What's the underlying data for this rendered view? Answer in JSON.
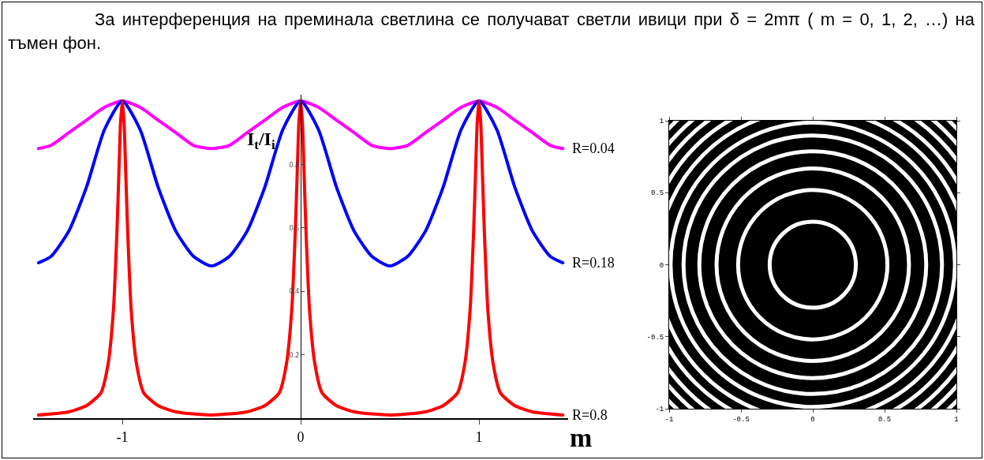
{
  "chart_data": [
    {
      "type": "line",
      "title": "За интерференция на преминала светлина се получават светли ивици при δ = 2mπ ( m = 0, 1, 2, …) на тъмен фон.",
      "xlabel": "m",
      "ylabel": "I$_{t}$/I$_{i}$",
      "xlim": [
        -1.5,
        1.5
      ],
      "ylim": [
        0,
        1.02
      ],
      "xticks": [
        -1,
        0,
        1
      ],
      "yticks": [
        0.2,
        0.4,
        0.6,
        0.8
      ],
      "grid": false,
      "legend": false,
      "series": [
        {
          "name": "R=0.04",
          "color": "#ff00ff",
          "x": [
            -1.47,
            -1.4,
            -1.3,
            -1.2,
            -1.1,
            -1,
            -0.9,
            -0.8,
            -0.7,
            -0.6,
            -0.5,
            -0.4,
            -0.3,
            -0.2,
            -0.1,
            0,
            0.1,
            0.2,
            0.3,
            0.4,
            0.5,
            0.6,
            0.7,
            0.8,
            0.9,
            1,
            1.1,
            1.2,
            1.3,
            1.4,
            1.47
          ],
          "values": [
            0.85,
            0.86,
            0.9,
            0.94,
            0.98,
            1,
            0.98,
            0.94,
            0.9,
            0.86,
            0.85,
            0.86,
            0.9,
            0.94,
            0.98,
            1,
            0.98,
            0.94,
            0.9,
            0.86,
            0.85,
            0.86,
            0.9,
            0.94,
            0.98,
            1,
            0.98,
            0.94,
            0.9,
            0.86,
            0.85
          ]
        },
        {
          "name": "R=0.18",
          "color": "#0000ff",
          "x": [
            -1.47,
            -1.4,
            -1.3,
            -1.2,
            -1.1,
            -1,
            -0.9,
            -0.8,
            -0.7,
            -0.6,
            -0.5,
            -0.4,
            -0.3,
            -0.2,
            -0.1,
            0,
            0.1,
            0.2,
            0.3,
            0.4,
            0.5,
            0.6,
            0.7,
            0.8,
            0.9,
            1,
            1.1,
            1.2,
            1.3,
            1.4,
            1.47
          ],
          "values": [
            0.49,
            0.51,
            0.59,
            0.73,
            0.91,
            1,
            0.91,
            0.73,
            0.59,
            0.51,
            0.48,
            0.51,
            0.59,
            0.73,
            0.91,
            1,
            0.91,
            0.73,
            0.59,
            0.51,
            0.48,
            0.51,
            0.59,
            0.73,
            0.91,
            1,
            0.91,
            0.73,
            0.59,
            0.51,
            0.49
          ]
        },
        {
          "name": "R=0.8",
          "color": "#ff0000",
          "x": [
            -1.47,
            -1.3,
            -1.2,
            -1.12,
            -1.08,
            -1.05,
            -1.03,
            -1.02,
            -1.01,
            -1,
            -0.99,
            -0.98,
            -0.97,
            -0.95,
            -0.92,
            -0.88,
            -0.8,
            -0.7,
            -0.5,
            -0.3,
            -0.2,
            -0.12,
            -0.08,
            -0.05,
            -0.03,
            -0.02,
            -0.01,
            0,
            0.01,
            0.02,
            0.03,
            0.05,
            0.08,
            0.12,
            0.2,
            0.3,
            0.5,
            0.7,
            0.8,
            0.88,
            0.92,
            0.95,
            0.97,
            0.98,
            0.99,
            1,
            1.01,
            1.02,
            1.03,
            1.05,
            1.08,
            1.12,
            1.2,
            1.3,
            1.47
          ],
          "values": [
            0.01,
            0.02,
            0.04,
            0.08,
            0.17,
            0.34,
            0.59,
            0.76,
            0.93,
            1,
            0.93,
            0.76,
            0.59,
            0.34,
            0.17,
            0.08,
            0.04,
            0.02,
            0.01,
            0.02,
            0.04,
            0.08,
            0.17,
            0.34,
            0.59,
            0.76,
            0.93,
            1,
            0.93,
            0.76,
            0.59,
            0.34,
            0.17,
            0.08,
            0.04,
            0.02,
            0.01,
            0.02,
            0.04,
            0.08,
            0.17,
            0.34,
            0.59,
            0.76,
            0.93,
            1,
            0.93,
            0.76,
            0.59,
            0.34,
            0.17,
            0.08,
            0.04,
            0.02,
            0.01
          ]
        }
      ]
    },
    {
      "type": "line",
      "xlim": [
        -1,
        1
      ],
      "ylim": [
        -1,
        1
      ],
      "xticks": [
        -1,
        -0.5,
        0,
        0.5,
        1
      ],
      "yticks": [
        -1,
        -0.5,
        0,
        0.5,
        1
      ],
      "grid": false,
      "legend": false
    }
  ]
}
